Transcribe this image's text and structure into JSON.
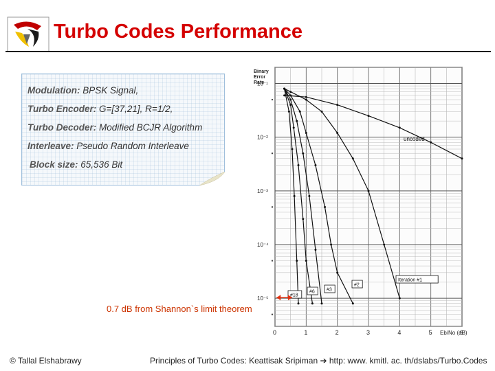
{
  "slide": {
    "title": "Turbo Codes Performance"
  },
  "params": [
    {
      "label": "Modulation:",
      "value": " BPSK Signal,"
    },
    {
      "label": "Turbo Encoder:",
      "value": " G=[37,21], R=1/2,"
    },
    {
      "label": "Turbo Decoder:",
      "value": " Modified BCJR Algorithm"
    },
    {
      "label": "Interleave:",
      "value": " Pseudo Random Interleave"
    },
    {
      "label": "Block size:",
      "value": " 65,536 Bit"
    }
  ],
  "annotation": "0.7 dB from Shannon`s limit theorem",
  "footer": {
    "left": "© Tallal Elshabrawy",
    "right": "Principles of Turbo Codes: Keattisak Sripiman ➔ http: www. kmitl. ac. th/dslabs/Turbo.Codes"
  },
  "colors": {
    "title": "#d40000",
    "annotation": "#cc3300",
    "arrow": "#e03010"
  },
  "chart_data": {
    "type": "line",
    "ylabel": "Binary Error Rate",
    "xlabel": "Eb/No (dB)",
    "y_scale": "log",
    "xlim": [
      0,
      6
    ],
    "ylim": [
      3e-06,
      0.2
    ],
    "x_ticks": [
      "0",
      "1",
      "2",
      "3",
      "4",
      "5",
      "6"
    ],
    "y_ticks": [
      "10⁻¹",
      "10⁻²",
      "10⁻³",
      "10⁻⁴",
      "10⁻⁵"
    ],
    "grid": true,
    "series": [
      {
        "name": "uncoded",
        "x": [
          0.3,
          1,
          2,
          3,
          4,
          5,
          6
        ],
        "y": [
          0.06,
          0.056,
          0.04,
          0.025,
          0.015,
          0.008,
          0.004
        ]
      },
      {
        "name": "Iteration #1",
        "x": [
          0.3,
          0.5,
          1,
          1.5,
          2,
          2.5,
          3,
          3.5,
          4
        ],
        "y": [
          0.08,
          0.07,
          0.05,
          0.03,
          0.012,
          0.004,
          0.001,
          0.0001,
          1e-05
        ]
      },
      {
        "name": "#2",
        "x": [
          0.3,
          0.5,
          0.8,
          1,
          1.3,
          1.6,
          1.8,
          2.0,
          2.5
        ],
        "y": [
          0.08,
          0.06,
          0.03,
          0.012,
          0.003,
          0.0005,
          0.0001,
          3e-05,
          8e-06
        ]
      },
      {
        "name": "#3",
        "x": [
          0.3,
          0.5,
          0.7,
          0.9,
          1.1,
          1.3,
          1.5
        ],
        "y": [
          0.08,
          0.05,
          0.02,
          0.005,
          0.0008,
          8e-05,
          8e-06
        ]
      },
      {
        "name": "#6",
        "x": [
          0.3,
          0.5,
          0.6,
          0.75,
          0.9,
          1.0,
          1.2
        ],
        "y": [
          0.08,
          0.04,
          0.015,
          0.003,
          0.0003,
          5e-05,
          8e-06
        ]
      },
      {
        "name": "#18",
        "x": [
          0.3,
          0.45,
          0.55,
          0.62,
          0.7,
          0.75
        ],
        "y": [
          0.08,
          0.03,
          0.006,
          0.0008,
          5e-05,
          8e-06
        ]
      }
    ]
  }
}
